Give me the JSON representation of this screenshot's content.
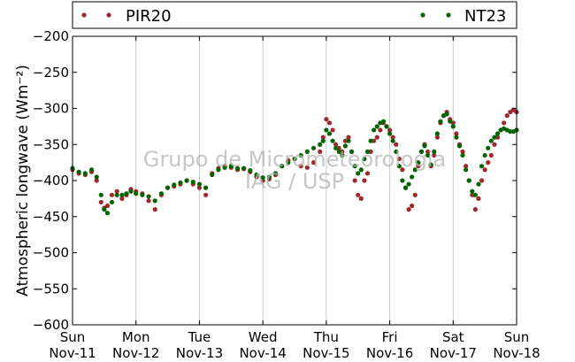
{
  "chart_data": {
    "type": "scatter",
    "ylabel": "Atmospheric longwave (Wm⁻²)",
    "ylim": [
      -600,
      -200
    ],
    "yticks": [
      -200,
      -250,
      -300,
      -350,
      -400,
      -450,
      -500,
      -550,
      -600
    ],
    "xlim": [
      "2012-11-11",
      "2012-11-18"
    ],
    "xticks": [
      {
        "day": "Sun",
        "date": "Nov-11"
      },
      {
        "day": "Mon",
        "date": "Nov-12"
      },
      {
        "day": "Tue",
        "date": "Nov-13"
      },
      {
        "day": "Wed",
        "date": "Nov-14"
      },
      {
        "day": "Thu",
        "date": "Nov-15"
      },
      {
        "day": "Fri",
        "date": "Nov-16"
      },
      {
        "day": "Sat",
        "date": "Nov-17"
      },
      {
        "day": "Sun",
        "date": "Nov-18"
      }
    ],
    "grid": "vertical",
    "legend_position": "top",
    "watermark": [
      "Grupo de Micrometeorologia",
      "IAG / USP"
    ],
    "series": [
      {
        "name": "PIR20",
        "color": "#a0282d",
        "day": [
          0.0,
          0.1,
          0.2,
          0.3,
          0.38,
          0.45,
          0.5,
          0.55,
          0.62,
          0.7,
          0.78,
          0.85,
          0.92,
          1.0,
          1.1,
          1.2,
          1.3,
          1.4,
          1.5,
          1.6,
          1.7,
          1.8,
          1.9,
          2.0,
          2.1,
          2.2,
          2.3,
          2.4,
          2.5,
          2.6,
          2.7,
          2.8,
          2.9,
          3.0,
          3.1,
          3.2,
          3.3,
          3.4,
          3.5,
          3.6,
          3.7,
          3.8,
          3.9,
          3.95,
          4.0,
          4.05,
          4.1,
          4.15,
          4.2,
          4.25,
          4.3,
          4.35,
          4.4,
          4.45,
          4.5,
          4.55,
          4.6,
          4.65,
          4.7,
          4.75,
          4.8,
          4.85,
          4.9,
          4.95,
          5.0,
          5.05,
          5.1,
          5.15,
          5.2,
          5.25,
          5.3,
          5.35,
          5.4,
          5.45,
          5.5,
          5.55,
          5.6,
          5.65,
          5.7,
          5.75,
          5.8,
          5.85,
          5.9,
          5.95,
          6.0,
          6.05,
          6.1,
          6.15,
          6.2,
          6.25,
          6.3,
          6.35,
          6.4,
          6.45,
          6.5,
          6.55,
          6.6,
          6.65,
          6.7,
          6.75,
          6.8,
          6.85,
          6.9,
          6.95,
          7.0
        ],
        "value": [
          -385,
          -390,
          -392,
          -388,
          -400,
          -430,
          -438,
          -435,
          -420,
          -415,
          -425,
          -420,
          -412,
          -415,
          -418,
          -428,
          -440,
          -420,
          -410,
          -408,
          -405,
          -400,
          -405,
          -410,
          -420,
          -390,
          -383,
          -380,
          -382,
          -385,
          -384,
          -388,
          -395,
          -400,
          -398,
          -392,
          -380,
          -372,
          -370,
          -380,
          -382,
          -375,
          -360,
          -340,
          -315,
          -320,
          -330,
          -350,
          -355,
          -360,
          -345,
          -340,
          -360,
          -400,
          -420,
          -425,
          -400,
          -390,
          -360,
          -345,
          -340,
          -330,
          -320,
          -325,
          -330,
          -340,
          -350,
          -370,
          -385,
          -410,
          -440,
          -435,
          -420,
          -380,
          -360,
          -350,
          -360,
          -380,
          -365,
          -340,
          -320,
          -310,
          -305,
          -315,
          -320,
          -335,
          -350,
          -360,
          -380,
          -400,
          -420,
          -440,
          -425,
          -400,
          -385,
          -375,
          -365,
          -350,
          -340,
          -330,
          -320,
          -310,
          -305,
          -302,
          -305
        ]
      },
      {
        "name": "NT23",
        "color": "#006400",
        "day": [
          0.0,
          0.1,
          0.2,
          0.3,
          0.38,
          0.45,
          0.5,
          0.55,
          0.62,
          0.7,
          0.78,
          0.85,
          0.92,
          1.0,
          1.1,
          1.2,
          1.3,
          1.4,
          1.5,
          1.6,
          1.7,
          1.8,
          1.9,
          2.0,
          2.1,
          2.2,
          2.3,
          2.4,
          2.5,
          2.6,
          2.7,
          2.8,
          2.9,
          3.0,
          3.1,
          3.2,
          3.3,
          3.4,
          3.5,
          3.6,
          3.7,
          3.8,
          3.9,
          3.95,
          4.0,
          4.05,
          4.1,
          4.15,
          4.2,
          4.25,
          4.3,
          4.35,
          4.4,
          4.45,
          4.5,
          4.55,
          4.6,
          4.65,
          4.7,
          4.75,
          4.8,
          4.85,
          4.9,
          4.95,
          5.0,
          5.05,
          5.1,
          5.15,
          5.2,
          5.25,
          5.3,
          5.35,
          5.4,
          5.45,
          5.5,
          5.55,
          5.6,
          5.65,
          5.7,
          5.75,
          5.8,
          5.85,
          5.9,
          5.95,
          6.0,
          6.05,
          6.1,
          6.15,
          6.2,
          6.25,
          6.3,
          6.35,
          6.4,
          6.45,
          6.5,
          6.55,
          6.6,
          6.65,
          6.7,
          6.75,
          6.8,
          6.85,
          6.9,
          6.95,
          7.0
        ],
        "value": [
          -383,
          -388,
          -390,
          -385,
          -395,
          -420,
          -440,
          -445,
          -430,
          -420,
          -420,
          -418,
          -415,
          -418,
          -420,
          -422,
          -428,
          -418,
          -410,
          -406,
          -403,
          -400,
          -402,
          -405,
          -410,
          -392,
          -385,
          -382,
          -380,
          -383,
          -383,
          -386,
          -392,
          -396,
          -395,
          -390,
          -380,
          -375,
          -370,
          -365,
          -360,
          -355,
          -350,
          -345,
          -330,
          -335,
          -345,
          -355,
          -360,
          -365,
          -352,
          -345,
          -360,
          -380,
          -390,
          -385,
          -370,
          -360,
          -345,
          -330,
          -325,
          -320,
          -318,
          -325,
          -335,
          -345,
          -360,
          -380,
          -400,
          -410,
          -405,
          -395,
          -385,
          -375,
          -360,
          -352,
          -365,
          -378,
          -360,
          -335,
          -318,
          -310,
          -308,
          -318,
          -325,
          -340,
          -352,
          -365,
          -385,
          -400,
          -415,
          -420,
          -405,
          -380,
          -365,
          -355,
          -345,
          -340,
          -335,
          -330,
          -328,
          -330,
          -332,
          -332,
          -330
        ]
      }
    ]
  }
}
